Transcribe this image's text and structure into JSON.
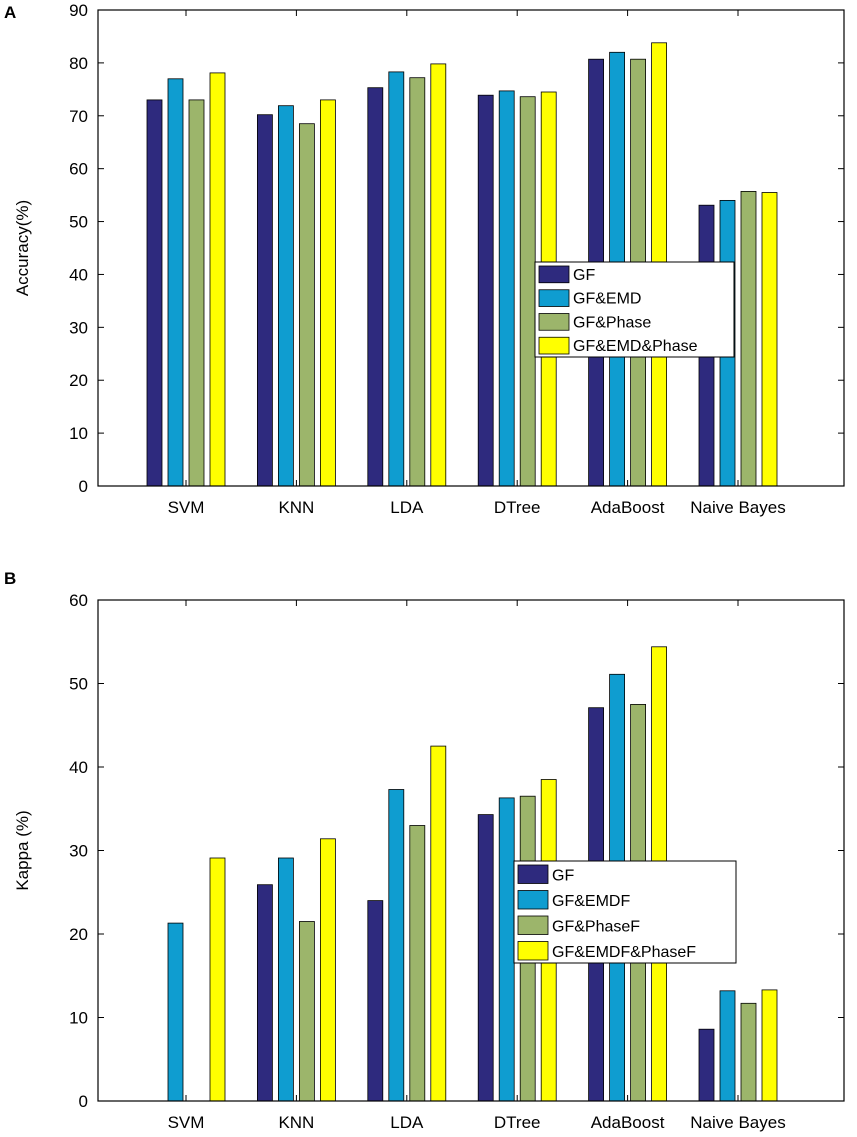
{
  "chart_data": [
    {
      "panel": "A",
      "type": "bar",
      "categories": [
        "SVM",
        "KNN",
        "LDA",
        "DTree",
        "AdaBoost",
        "Naive Bayes"
      ],
      "ylabel": "Accuracy(%)",
      "xlabel": "",
      "ylim": [
        0,
        90
      ],
      "yticks": [
        0,
        10,
        20,
        30,
        40,
        50,
        60,
        70,
        80,
        90
      ],
      "grid": false,
      "legend_position": "center-right",
      "series": [
        {
          "name": "GF",
          "color": "#2E2A7E",
          "values": [
            73.0,
            70.2,
            75.3,
            73.9,
            80.7,
            53.1
          ]
        },
        {
          "name": "GF&EMD",
          "color": "#0F9DD0",
          "values": [
            77.0,
            71.9,
            78.3,
            74.7,
            82.0,
            54.0
          ]
        },
        {
          "name": "GF&Phase",
          "color": "#9CB56B",
          "values": [
            73.0,
            68.5,
            77.2,
            73.6,
            80.7,
            55.7
          ]
        },
        {
          "name": "GF&EMD&Phase",
          "color": "#FFFF00",
          "values": [
            78.1,
            73.0,
            79.8,
            74.5,
            83.8,
            55.5
          ]
        }
      ]
    },
    {
      "panel": "B",
      "type": "bar",
      "categories": [
        "SVM",
        "KNN",
        "LDA",
        "DTree",
        "AdaBoost",
        "Naive Bayes"
      ],
      "ylabel": "Kappa (%)",
      "xlabel": "",
      "ylim": [
        0,
        60
      ],
      "yticks": [
        0,
        10,
        20,
        30,
        40,
        50,
        60
      ],
      "grid": false,
      "legend_position": "center",
      "series": [
        {
          "name": "GF",
          "color": "#2E2A7E",
          "values": [
            0,
            25.9,
            24.0,
            34.3,
            47.1,
            8.6
          ]
        },
        {
          "name": "GF&EMDF",
          "color": "#0F9DD0",
          "values": [
            21.3,
            29.1,
            37.3,
            36.3,
            51.1,
            13.2
          ]
        },
        {
          "name": "GF&PhaseF",
          "color": "#9CB56B",
          "values": [
            0,
            21.5,
            33.0,
            36.5,
            47.5,
            11.7
          ]
        },
        {
          "name": "GF&EMDF&PhaseF",
          "color": "#FFFF00",
          "values": [
            29.1,
            31.4,
            42.5,
            38.5,
            54.4,
            13.3
          ]
        }
      ]
    }
  ]
}
